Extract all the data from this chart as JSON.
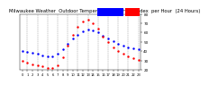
{
  "title": "Milwaukee Weather  Outdoor Temperature  vs THSW Index  per Hour  (24 Hours)",
  "background_color": "#ffffff",
  "grid_color": "#888888",
  "hours": [
    0,
    1,
    2,
    3,
    4,
    5,
    6,
    7,
    8,
    9,
    10,
    11,
    12,
    13,
    14,
    15,
    16,
    17,
    18,
    19,
    20,
    21,
    22,
    23
  ],
  "temp_values": [
    40,
    39,
    38,
    37,
    36,
    35,
    35,
    37,
    42,
    48,
    54,
    58,
    61,
    63,
    62,
    60,
    57,
    54,
    51,
    48,
    46,
    44,
    43,
    42
  ],
  "thsw_values": [
    30,
    28,
    26,
    25,
    24,
    22,
    22,
    25,
    34,
    46,
    58,
    66,
    72,
    74,
    70,
    64,
    56,
    50,
    44,
    40,
    37,
    35,
    33,
    31
  ],
  "temp_color": "#0000ff",
  "thsw_color": "#ff0000",
  "ylim_min": 20,
  "ylim_max": 80,
  "xlim_min": -0.5,
  "xlim_max": 23.5,
  "ytick_values": [
    20,
    30,
    40,
    50,
    60,
    70,
    80
  ],
  "ytick_labels": [
    "20",
    "30",
    "40",
    "50",
    "60",
    "70",
    "80"
  ],
  "xtick_values": [
    0,
    1,
    2,
    3,
    4,
    5,
    6,
    7,
    8,
    9,
    10,
    11,
    12,
    13,
    14,
    15,
    16,
    17,
    18,
    19,
    20,
    21,
    22,
    23
  ],
  "xtick_labels": [
    "0",
    "1",
    "2",
    "3",
    "4",
    "5",
    "6",
    "7",
    "8",
    "9",
    "10",
    "11",
    "12",
    "13",
    "14",
    "15",
    "16",
    "17",
    "18",
    "19",
    "20",
    "21",
    "22",
    "23"
  ],
  "title_fontsize": 3.8,
  "tick_fontsize": 3.0,
  "marker_size": 1.5,
  "legend_blue_color": "#0000ff",
  "legend_red_color": "#ff0000",
  "grid_hours": [
    1,
    3,
    5,
    7,
    9,
    11,
    13,
    15,
    17,
    19,
    21,
    23
  ]
}
